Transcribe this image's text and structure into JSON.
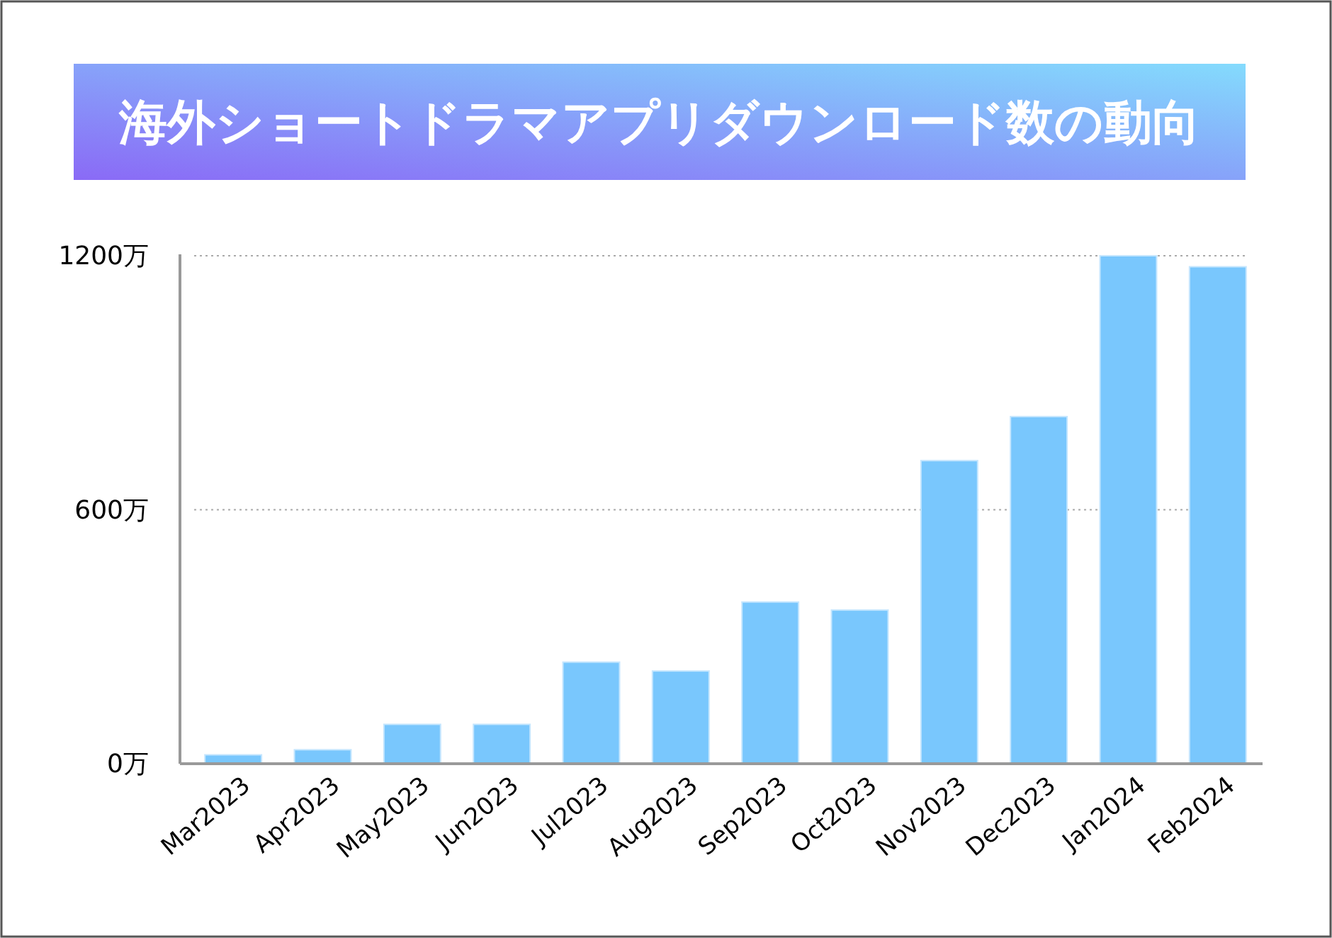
{
  "chart_data": {
    "type": "bar",
    "title": "海外ショートドラマアプリダウンロード数の動向",
    "categories": [
      "Mar2023",
      "Apr2023",
      "May2023",
      "Jun2023",
      "Jul2023",
      "Aug2023",
      "Sep2023",
      "Oct2023",
      "Nov2023",
      "Dec2023",
      "Jan2024",
      "Feb2024"
    ],
    "values": [
      21,
      33,
      93,
      93,
      240,
      219,
      382,
      363,
      716,
      820,
      1200,
      1174
    ],
    "color": "#79c7fd",
    "ylim": [
      0,
      1200
    ],
    "yticks": [
      {
        "value": 0,
        "label": "0万"
      },
      {
        "value": 600,
        "label": "600万"
      },
      {
        "value": 1200,
        "label": "1200万"
      }
    ],
    "grid": "y"
  }
}
